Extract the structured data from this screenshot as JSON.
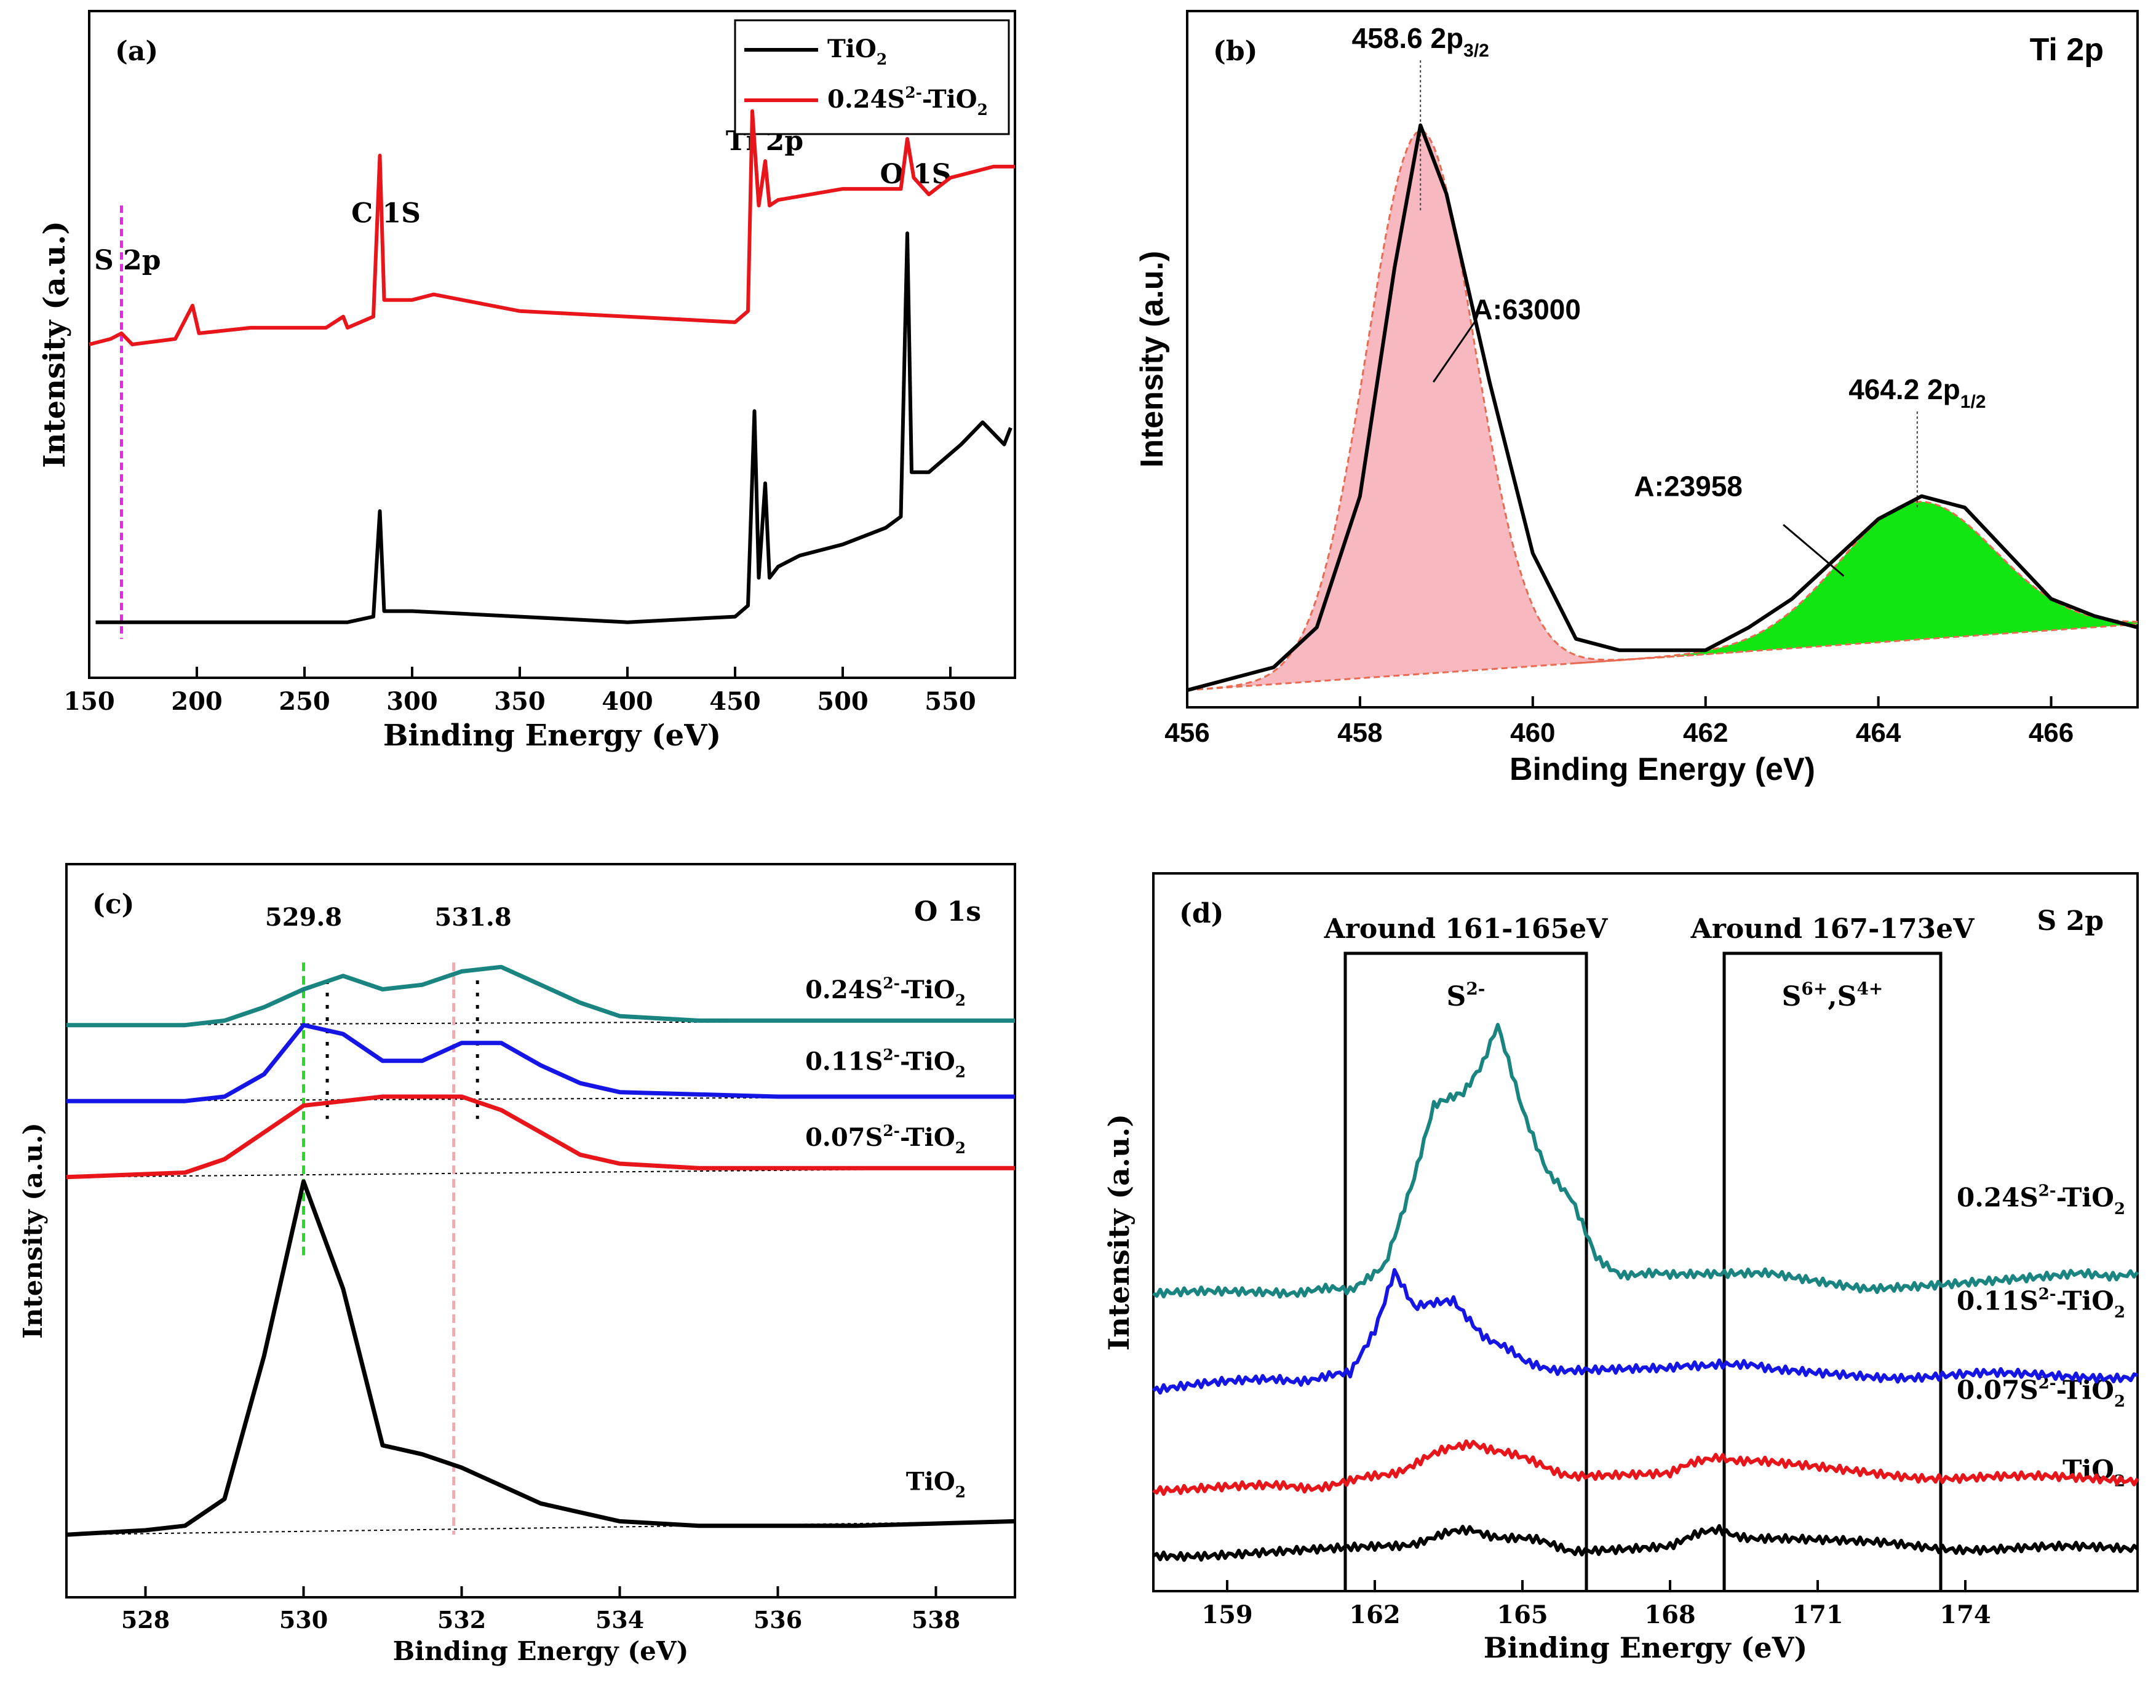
{
  "chart_data": [
    {
      "id": "a",
      "type": "line",
      "panel_label": "(a)",
      "xlabel": "Binding Energy (eV)",
      "ylabel": "Intensity (a.u.)",
      "xlim": [
        150,
        580
      ],
      "xticks": [
        150,
        200,
        250,
        300,
        350,
        400,
        450,
        500,
        550
      ],
      "legend": {
        "position": "top-right",
        "entries": [
          {
            "base": "TiO",
            "sub": "2",
            "color": "#000000"
          },
          {
            "pre": "0.24S",
            "sup": "2-",
            "mid": "-TiO",
            "sub": "2",
            "color": "#e8161b"
          }
        ]
      },
      "annotations": [
        {
          "text": "S 2p",
          "x": 165
        },
        {
          "text": "C 1S",
          "x": 285
        },
        {
          "text": "Ti 2p",
          "x": 458
        },
        {
          "text": "O 1S",
          "x": 531
        }
      ],
      "marker_line_x": 165,
      "series": [
        {
          "name": "TiO2",
          "color": "#000000",
          "points": [
            [
              153,
              0.0
            ],
            [
              270,
              0.0
            ],
            [
              282,
              0.01
            ],
            [
              285,
              0.2
            ],
            [
              287,
              0.02
            ],
            [
              300,
              0.02
            ],
            [
              350,
              0.01
            ],
            [
              400,
              0.0
            ],
            [
              450,
              0.01
            ],
            [
              456,
              0.03
            ],
            [
              459,
              0.38
            ],
            [
              461,
              0.08
            ],
            [
              464,
              0.25
            ],
            [
              466,
              0.08
            ],
            [
              470,
              0.1
            ],
            [
              480,
              0.12
            ],
            [
              500,
              0.14
            ],
            [
              520,
              0.17
            ],
            [
              527,
              0.19
            ],
            [
              530,
              0.7
            ],
            [
              532,
              0.27
            ],
            [
              540,
              0.27
            ],
            [
              555,
              0.32
            ],
            [
              565,
              0.36
            ],
            [
              570,
              0.34
            ],
            [
              575,
              0.32
            ],
            [
              578,
              0.35
            ]
          ]
        },
        {
          "name": "0.24S2--TiO2",
          "color": "#e8161b",
          "points": [
            [
              150,
              0.5
            ],
            [
              160,
              0.51
            ],
            [
              165,
              0.52
            ],
            [
              170,
              0.5
            ],
            [
              190,
              0.51
            ],
            [
              198,
              0.57
            ],
            [
              201,
              0.52
            ],
            [
              225,
              0.53
            ],
            [
              260,
              0.53
            ],
            [
              268,
              0.55
            ],
            [
              270,
              0.53
            ],
            [
              282,
              0.55
            ],
            [
              285,
              0.84
            ],
            [
              287,
              0.58
            ],
            [
              300,
              0.58
            ],
            [
              310,
              0.59
            ],
            [
              350,
              0.56
            ],
            [
              400,
              0.55
            ],
            [
              450,
              0.54
            ],
            [
              456,
              0.56
            ],
            [
              458,
              0.92
            ],
            [
              461,
              0.75
            ],
            [
              464,
              0.83
            ],
            [
              466,
              0.75
            ],
            [
              470,
              0.76
            ],
            [
              500,
              0.78
            ],
            [
              527,
              0.78
            ],
            [
              530,
              0.87
            ],
            [
              533,
              0.8
            ],
            [
              540,
              0.77
            ],
            [
              550,
              0.8
            ],
            [
              560,
              0.81
            ],
            [
              570,
              0.82
            ],
            [
              580,
              0.82
            ]
          ]
        }
      ]
    },
    {
      "id": "b",
      "type": "area",
      "panel_label": "(b)",
      "title": "Ti 2p",
      "xlabel": "Binding Energy (eV)",
      "ylabel": "Intensity (a.u.)",
      "xlim": [
        456,
        467
      ],
      "xticks": [
        456,
        458,
        460,
        462,
        464,
        466
      ],
      "peaks": [
        {
          "center": 458.7,
          "label_value": "458.6",
          "label_main": "2p",
          "label_sub": "3/2",
          "area_text": "A:63000",
          "fill": "#f8b8c0"
        },
        {
          "center": 464.45,
          "label_value": "464.2",
          "label_main": "2p",
          "label_sub": "1/2",
          "area_text": "A:23958",
          "fill": "#12e612"
        }
      ],
      "series": [
        {
          "name": "measured",
          "color": "#000000",
          "points": [
            [
              456,
              0.01
            ],
            [
              457,
              0.05
            ],
            [
              457.5,
              0.12
            ],
            [
              458,
              0.35
            ],
            [
              458.4,
              0.75
            ],
            [
              458.7,
              1.0
            ],
            [
              459,
              0.88
            ],
            [
              459.5,
              0.55
            ],
            [
              460,
              0.25
            ],
            [
              460.5,
              0.1
            ],
            [
              461,
              0.08
            ],
            [
              462,
              0.08
            ],
            [
              462.5,
              0.12
            ],
            [
              463,
              0.17
            ],
            [
              463.5,
              0.24
            ],
            [
              464,
              0.31
            ],
            [
              464.5,
              0.35
            ],
            [
              465,
              0.33
            ],
            [
              465.5,
              0.25
            ],
            [
              466,
              0.17
            ],
            [
              466.5,
              0.14
            ],
            [
              467,
              0.12
            ]
          ]
        }
      ]
    },
    {
      "id": "c",
      "type": "line",
      "panel_label": "(c)",
      "title": "O 1s",
      "xlabel": "Binding Energy (eV)",
      "ylabel": "Intensity (a.u.)",
      "xlim": [
        527,
        539
      ],
      "xticks": [
        528,
        530,
        532,
        534,
        536,
        538
      ],
      "peak_labels": [
        {
          "text": "529.8",
          "x": 530.0
        },
        {
          "text": "531.8",
          "x": 531.95
        }
      ],
      "series": [
        {
          "name": "TiO2",
          "label": {
            "base": "TiO",
            "sub": "2"
          },
          "color": "#000000",
          "points": [
            [
              527,
              0.0
            ],
            [
              528,
              0.01
            ],
            [
              528.5,
              0.02
            ],
            [
              529,
              0.08
            ],
            [
              529.5,
              0.4
            ],
            [
              530,
              0.79
            ],
            [
              530.5,
              0.55
            ],
            [
              531,
              0.2
            ],
            [
              531.5,
              0.18
            ],
            [
              532,
              0.15
            ],
            [
              533,
              0.07
            ],
            [
              534,
              0.03
            ],
            [
              535,
              0.02
            ],
            [
              537,
              0.02
            ],
            [
              539,
              0.03
            ]
          ]
        },
        {
          "name": "0.07S2--TiO2",
          "label": {
            "pre": "0.07S",
            "sup": "2-",
            "mid": "-TiO",
            "sub": "2"
          },
          "color": "#e8161b",
          "points": [
            [
              527,
              0.8
            ],
            [
              528.5,
              0.81
            ],
            [
              529,
              0.84
            ],
            [
              529.5,
              0.9
            ],
            [
              530,
              0.96
            ],
            [
              531,
              0.98
            ],
            [
              532,
              0.98
            ],
            [
              532.5,
              0.95
            ],
            [
              533,
              0.9
            ],
            [
              533.5,
              0.85
            ],
            [
              534,
              0.83
            ],
            [
              535,
              0.82
            ],
            [
              537,
              0.82
            ],
            [
              539,
              0.82
            ]
          ]
        },
        {
          "name": "0.11S2--TiO2",
          "label": {
            "pre": "0.11S",
            "sup": "2-",
            "mid": "-TiO",
            "sub": "2"
          },
          "color": "#1515e6",
          "points": [
            [
              527,
              0.97
            ],
            [
              528.5,
              0.97
            ],
            [
              529,
              0.98
            ],
            [
              529.5,
              1.03
            ],
            [
              530,
              1.14
            ],
            [
              530.5,
              1.12
            ],
            [
              531,
              1.06
            ],
            [
              531.5,
              1.06
            ],
            [
              532,
              1.1
            ],
            [
              532.5,
              1.1
            ],
            [
              533,
              1.05
            ],
            [
              533.5,
              1.01
            ],
            [
              534,
              0.99
            ],
            [
              536,
              0.98
            ],
            [
              539,
              0.98
            ]
          ]
        },
        {
          "name": "0.24S2--TiO2",
          "label": {
            "pre": "0.24S",
            "sup": "2-",
            "mid": "-TiO",
            "sub": "2"
          },
          "color": "#1a8580",
          "points": [
            [
              527,
              1.14
            ],
            [
              528.5,
              1.14
            ],
            [
              529,
              1.15
            ],
            [
              529.5,
              1.18
            ],
            [
              530,
              1.22
            ],
            [
              530.5,
              1.25
            ],
            [
              531,
              1.22
            ],
            [
              531.5,
              1.23
            ],
            [
              532,
              1.26
            ],
            [
              532.5,
              1.27
            ],
            [
              533,
              1.23
            ],
            [
              533.5,
              1.19
            ],
            [
              534,
              1.16
            ],
            [
              535,
              1.15
            ],
            [
              539,
              1.15
            ]
          ]
        }
      ],
      "vlines": [
        {
          "x": 530.0,
          "color": "#22dd22"
        },
        {
          "x": 530.3,
          "color": "#000000"
        },
        {
          "x": 531.9,
          "color": "#f4a8b0"
        },
        {
          "x": 532.2,
          "color": "#000000"
        }
      ]
    },
    {
      "id": "d",
      "type": "line",
      "panel_label": "(d)",
      "title": "S 2p",
      "xlabel": "Binding Energy (eV)",
      "ylabel": "Intensity (a.u.)",
      "xlim": [
        157.5,
        177.5
      ],
      "xticks": [
        159,
        162,
        165,
        168,
        171,
        174
      ],
      "regions": [
        {
          "from": 161.4,
          "to": 166.3,
          "header": "Around 161-165eV",
          "ion_a": "S",
          "ion_a_sup": "2-",
          "ion_b": "",
          "ion_b_sup": ""
        },
        {
          "from": 169.1,
          "to": 173.5,
          "header": "Around 167-173eV",
          "ion_a": "S",
          "ion_a_sup": "6+",
          "ion_b": ",S",
          "ion_b_sup": "4+"
        }
      ],
      "series": [
        {
          "name": "TiO2",
          "label": {
            "base": "TiO",
            "sub": "2"
          },
          "color": "#000000",
          "points": [
            [
              157.5,
              0.0
            ],
            [
              160,
              0.0
            ],
            [
              162,
              0.01
            ],
            [
              163.5,
              0.04
            ],
            [
              164,
              0.05
            ],
            [
              165,
              0.03
            ],
            [
              166,
              0.01
            ],
            [
              168,
              0.02
            ],
            [
              169,
              0.05
            ],
            [
              170,
              0.03
            ],
            [
              172,
              0.02
            ],
            [
              175,
              0.01
            ],
            [
              177.5,
              0.01
            ]
          ]
        },
        {
          "name": "0.07S2--TiO2",
          "label": {
            "pre": "0.07S",
            "sup": "2-",
            "mid": "-TiO",
            "sub": "2"
          },
          "color": "#e8161b",
          "points": [
            [
              157.5,
              0.14
            ],
            [
              160,
              0.14
            ],
            [
              161.5,
              0.15
            ],
            [
              162.5,
              0.18
            ],
            [
              163.5,
              0.22
            ],
            [
              164,
              0.24
            ],
            [
              165,
              0.2
            ],
            [
              166,
              0.17
            ],
            [
              168,
              0.17
            ],
            [
              169,
              0.21
            ],
            [
              170,
              0.19
            ],
            [
              172,
              0.17
            ],
            [
              175,
              0.16
            ],
            [
              177.5,
              0.16
            ]
          ]
        },
        {
          "name": "0.11S2--TiO2",
          "label": {
            "pre": "0.11S",
            "sup": "2-",
            "mid": "-TiO",
            "sub": "2"
          },
          "color": "#1515e6",
          "points": [
            [
              157.5,
              0.35
            ],
            [
              160,
              0.37
            ],
            [
              161.5,
              0.38
            ],
            [
              162,
              0.48
            ],
            [
              162.4,
              0.6
            ],
            [
              162.8,
              0.52
            ],
            [
              163.2,
              0.53
            ],
            [
              163.6,
              0.54
            ],
            [
              164.2,
              0.47
            ],
            [
              165,
              0.41
            ],
            [
              166,
              0.39
            ],
            [
              168,
              0.39
            ],
            [
              169,
              0.41
            ],
            [
              170,
              0.39
            ],
            [
              172,
              0.38
            ],
            [
              175,
              0.38
            ],
            [
              177.5,
              0.38
            ]
          ]
        },
        {
          "name": "0.24S2--TiO2",
          "label": {
            "pre": "0.24S",
            "sup": "2-",
            "mid": "-TiO",
            "sub": "2"
          },
          "color": "#1a8580",
          "points": [
            [
              157.5,
              0.55
            ],
            [
              160,
              0.56
            ],
            [
              161.5,
              0.56
            ],
            [
              162.2,
              0.62
            ],
            [
              162.8,
              0.8
            ],
            [
              163.2,
              0.95
            ],
            [
              163.8,
              0.98
            ],
            [
              164.2,
              1.05
            ],
            [
              164.5,
              1.12
            ],
            [
              165,
              0.95
            ],
            [
              165.5,
              0.82
            ],
            [
              166,
              0.75
            ],
            [
              166.5,
              0.63
            ],
            [
              167,
              0.6
            ],
            [
              168,
              0.59
            ],
            [
              170,
              0.6
            ],
            [
              172,
              0.57
            ],
            [
              174,
              0.58
            ],
            [
              176,
              0.59
            ],
            [
              177.5,
              0.6
            ]
          ]
        }
      ]
    }
  ]
}
